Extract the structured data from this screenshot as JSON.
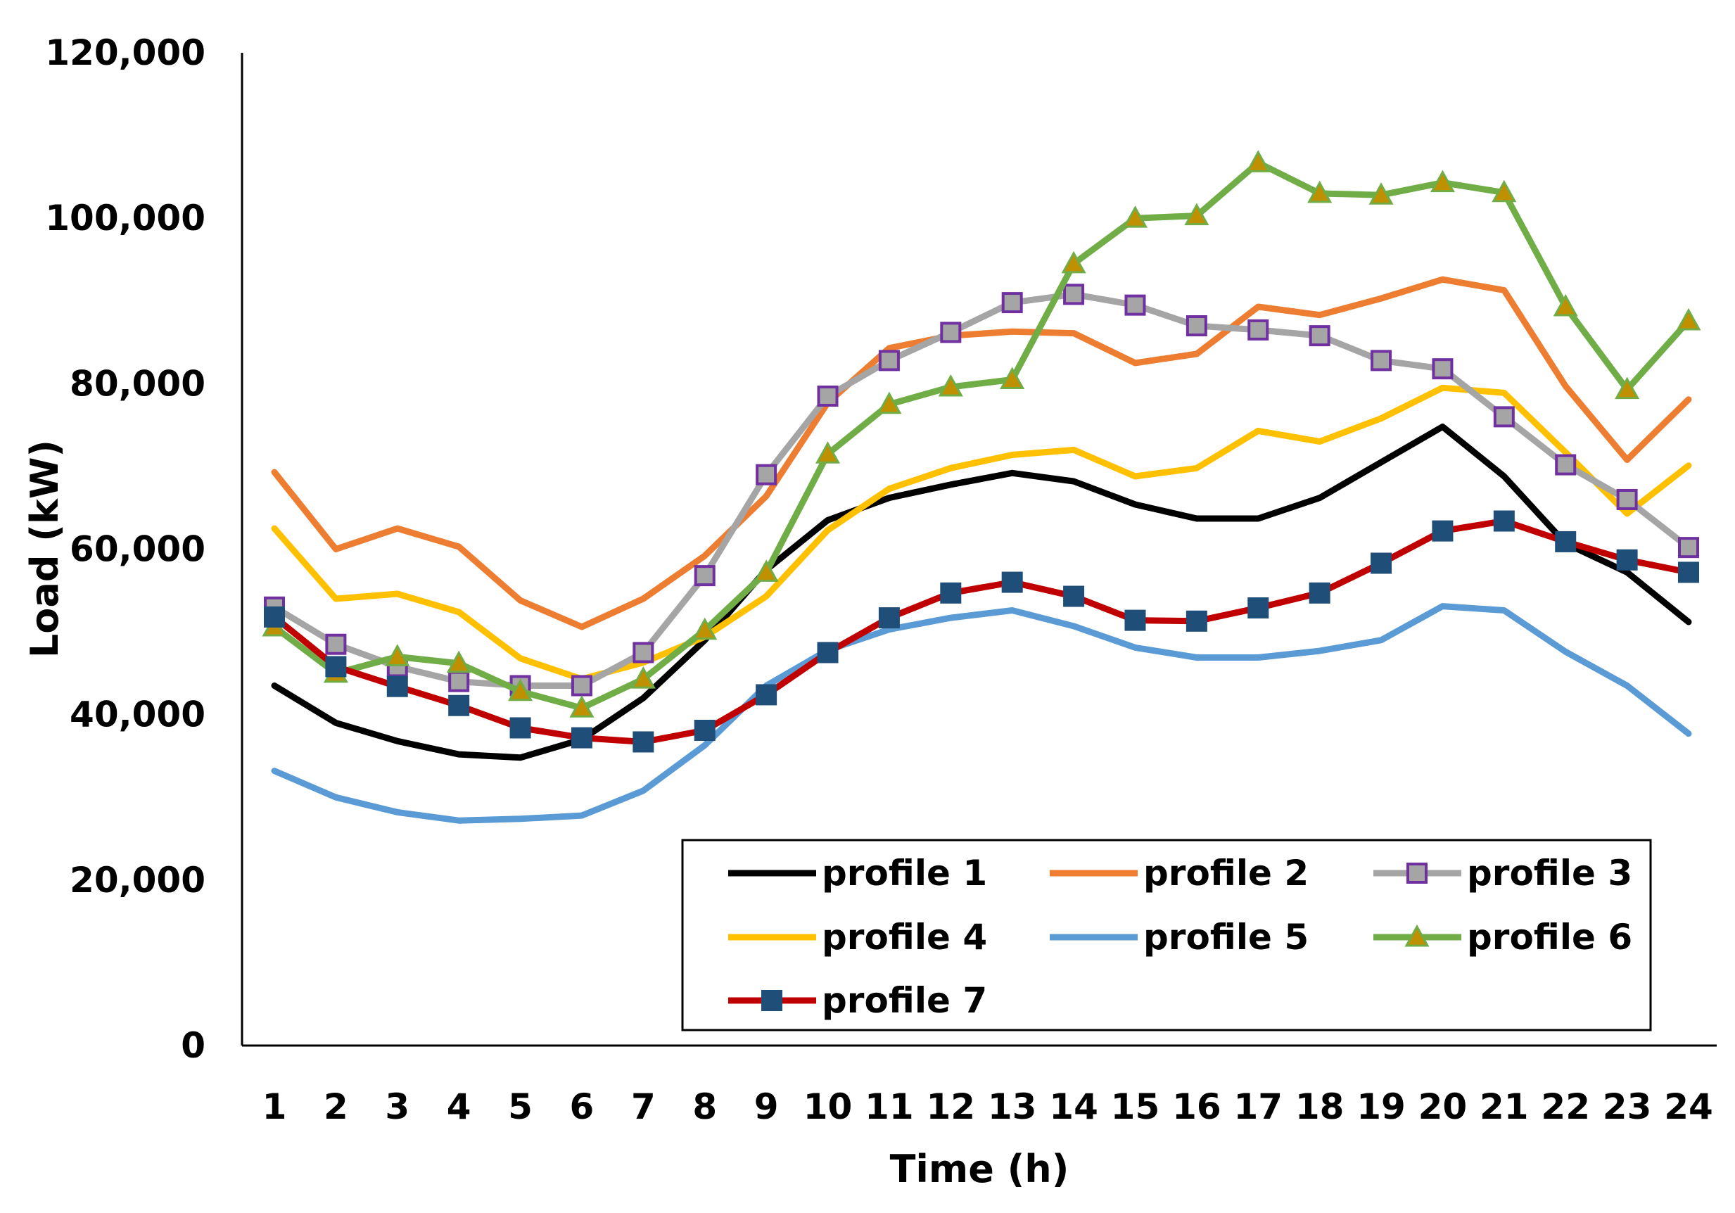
{
  "chart_data": {
    "type": "line",
    "title": "",
    "xlabel": "Time (h)",
    "ylabel": "Load (kW)",
    "ylim": [
      0,
      120000
    ],
    "yticks": [
      0,
      20000,
      40000,
      60000,
      80000,
      100000,
      120000
    ],
    "ytick_labels": [
      "0",
      "20,000",
      "40,000",
      "60,000",
      "80,000",
      "100,000",
      "120,000"
    ],
    "categories": [
      "1",
      "2",
      "3",
      "4",
      "5",
      "6",
      "7",
      "8",
      "9",
      "10",
      "11",
      "12",
      "13",
      "14",
      "15",
      "16",
      "17",
      "18",
      "19",
      "20",
      "21",
      "22",
      "23",
      "24"
    ],
    "grid": false,
    "legend_position": "bottom-right",
    "series": [
      {
        "name": "profile 1",
        "color": "#000000",
        "marker": "none",
        "values": [
          43500,
          39000,
          36800,
          35200,
          34800,
          37000,
          42000,
          49000,
          57500,
          63500,
          66200,
          67800,
          69200,
          68200,
          65400,
          63700,
          63700,
          66200,
          70500,
          74800,
          68800,
          60700,
          57200,
          51200
        ]
      },
      {
        "name": "profile 2",
        "color": "#ED7D31",
        "marker": "none",
        "values": [
          69300,
          60000,
          62500,
          60300,
          53800,
          50600,
          54000,
          59200,
          66400,
          77700,
          84300,
          85800,
          86300,
          86100,
          82500,
          83600,
          89300,
          88300,
          90300,
          92600,
          91300,
          79700,
          70800,
          78100
        ]
      },
      {
        "name": "profile 3",
        "color": "#A5A5A5",
        "marker": "square-open",
        "marker_edge": "#7030A0",
        "values": [
          53000,
          48500,
          45800,
          44000,
          43500,
          43500,
          47500,
          56800,
          69000,
          78500,
          82800,
          86200,
          89800,
          90800,
          89500,
          87000,
          86500,
          85800,
          82800,
          81800,
          76000,
          70200,
          66000,
          60200
        ]
      },
      {
        "name": "profile 4",
        "color": "#FFC000",
        "marker": "none",
        "values": [
          62500,
          54000,
          54600,
          52400,
          46800,
          44300,
          46300,
          49400,
          54300,
          62300,
          67300,
          69800,
          71400,
          72000,
          68800,
          69800,
          74300,
          73000,
          75800,
          79500,
          78900,
          71700,
          64300,
          70100
        ]
      },
      {
        "name": "profile 5",
        "color": "#5B9BD5",
        "marker": "none",
        "values": [
          33200,
          30000,
          28200,
          27200,
          27400,
          27800,
          30800,
          36300,
          43500,
          47800,
          50300,
          51700,
          52600,
          50700,
          48100,
          46900,
          46900,
          47700,
          49000,
          53100,
          52600,
          47600,
          43500,
          37700
        ]
      },
      {
        "name": "profile 6",
        "color": "#70AD47",
        "marker": "triangle",
        "marker_fill": "#BF9000",
        "values": [
          50600,
          45000,
          47000,
          46200,
          42800,
          40800,
          44300,
          50200,
          57200,
          71500,
          77500,
          79600,
          80500,
          94500,
          100000,
          100300,
          106700,
          103000,
          102800,
          104300,
          103100,
          89300,
          79300,
          87600
        ]
      },
      {
        "name": "profile 7",
        "color": "#C00000",
        "marker": "square",
        "marker_fill": "#1F4E79",
        "values": [
          51800,
          45800,
          43400,
          41100,
          38400,
          37200,
          36700,
          38100,
          42400,
          47500,
          51700,
          54700,
          56000,
          54300,
          51400,
          51300,
          52900,
          54700,
          58300,
          62200,
          63400,
          60900,
          58700,
          57200
        ]
      }
    ]
  }
}
